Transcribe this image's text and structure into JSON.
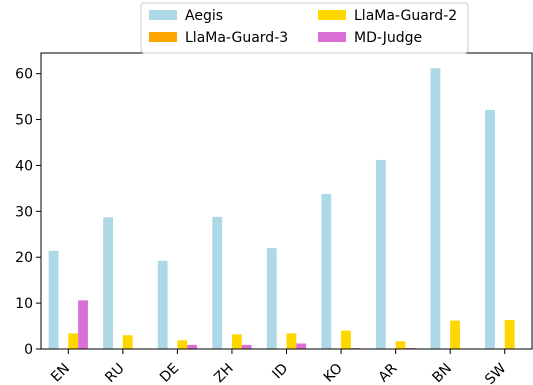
{
  "chart_data": {
    "type": "bar",
    "title": "",
    "xlabel": "",
    "ylabel": "",
    "categories": [
      "EN",
      "RU",
      "DE",
      "ZH",
      "ID",
      "KO",
      "AR",
      "BN",
      "SW"
    ],
    "ylim": [
      0,
      64.5
    ],
    "yticks": [
      0,
      10,
      20,
      30,
      40,
      50,
      60
    ],
    "grid": false,
    "legend_position": "top",
    "series": [
      {
        "name": "Aegis",
        "color": "#add8e6",
        "values": [
          21.4,
          28.7,
          19.2,
          28.8,
          22.0,
          33.8,
          41.2,
          61.2,
          52.1
        ]
      },
      {
        "name": "LlaMa-Guard-3",
        "color": "#ffa500",
        "values": [
          0,
          0,
          0,
          0,
          0,
          0,
          0,
          0,
          0
        ]
      },
      {
        "name": "LlaMa-Guard-2",
        "color": "#ffd700",
        "values": [
          3.4,
          3.0,
          1.9,
          3.2,
          3.4,
          4.0,
          1.7,
          6.2,
          6.3
        ]
      },
      {
        "name": "MD-Judge",
        "color": "#da70d6",
        "values": [
          10.6,
          0,
          0.9,
          0.9,
          1.2,
          0.2,
          0.2,
          0,
          0
        ]
      }
    ]
  }
}
